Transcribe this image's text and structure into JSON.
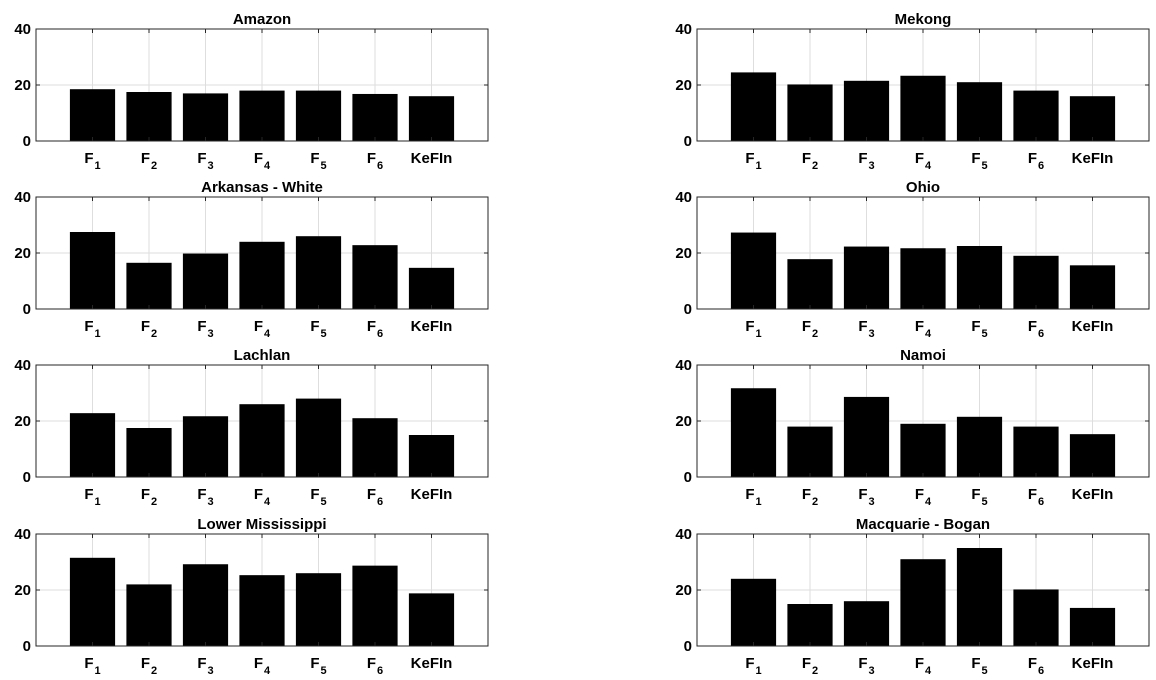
{
  "chart_data": [
    {
      "type": "bar",
      "title": "Amazon",
      "categories": [
        {
          "base": "F",
          "sub": "1"
        },
        {
          "base": "F",
          "sub": "2"
        },
        {
          "base": "F",
          "sub": "3"
        },
        {
          "base": "F",
          "sub": "4"
        },
        {
          "base": "F",
          "sub": "5"
        },
        {
          "base": "F",
          "sub": "6"
        },
        {
          "base": "KeFIn",
          "sub": ""
        }
      ],
      "values": [
        18.5,
        17.5,
        17,
        18,
        18,
        16.8,
        16
      ],
      "ylim": [
        0,
        40
      ],
      "yticks": [
        "0",
        "20",
        "40"
      ],
      "grid": true,
      "bar_color": "#000000"
    },
    {
      "type": "bar",
      "title": "Mekong",
      "categories": [
        {
          "base": "F",
          "sub": "1"
        },
        {
          "base": "F",
          "sub": "2"
        },
        {
          "base": "F",
          "sub": "3"
        },
        {
          "base": "F",
          "sub": "4"
        },
        {
          "base": "F",
          "sub": "5"
        },
        {
          "base": "F",
          "sub": "6"
        },
        {
          "base": "KeFIn",
          "sub": ""
        }
      ],
      "values": [
        24.5,
        20.2,
        21.5,
        23.3,
        21,
        18,
        16
      ],
      "ylim": [
        0,
        40
      ],
      "yticks": [
        "0",
        "20",
        "40"
      ],
      "grid": true,
      "bar_color": "#000000"
    },
    {
      "type": "bar",
      "title": "Arkansas - White",
      "categories": [
        {
          "base": "F",
          "sub": "1"
        },
        {
          "base": "F",
          "sub": "2"
        },
        {
          "base": "F",
          "sub": "3"
        },
        {
          "base": "F",
          "sub": "4"
        },
        {
          "base": "F",
          "sub": "5"
        },
        {
          "base": "F",
          "sub": "6"
        },
        {
          "base": "KeFIn",
          "sub": ""
        }
      ],
      "values": [
        27.5,
        16.5,
        19.8,
        24,
        26,
        22.8,
        14.7
      ],
      "ylim": [
        0,
        40
      ],
      "yticks": [
        "0",
        "20",
        "40"
      ],
      "grid": true,
      "bar_color": "#000000"
    },
    {
      "type": "bar",
      "title": "Ohio",
      "categories": [
        {
          "base": "F",
          "sub": "1"
        },
        {
          "base": "F",
          "sub": "2"
        },
        {
          "base": "F",
          "sub": "3"
        },
        {
          "base": "F",
          "sub": "4"
        },
        {
          "base": "F",
          "sub": "5"
        },
        {
          "base": "F",
          "sub": "6"
        },
        {
          "base": "KeFIn",
          "sub": ""
        }
      ],
      "values": [
        27.3,
        17.8,
        22.3,
        21.7,
        22.5,
        19,
        15.6
      ],
      "ylim": [
        0,
        40
      ],
      "yticks": [
        "0",
        "20",
        "40"
      ],
      "grid": true,
      "bar_color": "#000000"
    },
    {
      "type": "bar",
      "title": "Lachlan",
      "categories": [
        {
          "base": "F",
          "sub": "1"
        },
        {
          "base": "F",
          "sub": "2"
        },
        {
          "base": "F",
          "sub": "3"
        },
        {
          "base": "F",
          "sub": "4"
        },
        {
          "base": "F",
          "sub": "5"
        },
        {
          "base": "F",
          "sub": "6"
        },
        {
          "base": "KeFIn",
          "sub": ""
        }
      ],
      "values": [
        22.8,
        17.5,
        21.7,
        26,
        28,
        21,
        15
      ],
      "ylim": [
        0,
        40
      ],
      "yticks": [
        "0",
        "20",
        "40"
      ],
      "grid": true,
      "bar_color": "#000000"
    },
    {
      "type": "bar",
      "title": "Namoi",
      "categories": [
        {
          "base": "F",
          "sub": "1"
        },
        {
          "base": "F",
          "sub": "2"
        },
        {
          "base": "F",
          "sub": "3"
        },
        {
          "base": "F",
          "sub": "4"
        },
        {
          "base": "F",
          "sub": "5"
        },
        {
          "base": "F",
          "sub": "6"
        },
        {
          "base": "KeFIn",
          "sub": ""
        }
      ],
      "values": [
        31.7,
        18,
        28.6,
        19,
        21.5,
        18,
        15.3
      ],
      "ylim": [
        0,
        40
      ],
      "yticks": [
        "0",
        "20",
        "40"
      ],
      "grid": true,
      "bar_color": "#000000"
    },
    {
      "type": "bar",
      "title": "Lower Mississippi",
      "categories": [
        {
          "base": "F",
          "sub": "1"
        },
        {
          "base": "F",
          "sub": "2"
        },
        {
          "base": "F",
          "sub": "3"
        },
        {
          "base": "F",
          "sub": "4"
        },
        {
          "base": "F",
          "sub": "5"
        },
        {
          "base": "F",
          "sub": "6"
        },
        {
          "base": "KeFIn",
          "sub": ""
        }
      ],
      "values": [
        31.5,
        22,
        29.2,
        25.3,
        26,
        28.7,
        18.8
      ],
      "ylim": [
        0,
        40
      ],
      "yticks": [
        "0",
        "20",
        "40"
      ],
      "grid": true,
      "bar_color": "#000000"
    },
    {
      "type": "bar",
      "title": "Macquarie - Bogan",
      "categories": [
        {
          "base": "F",
          "sub": "1"
        },
        {
          "base": "F",
          "sub": "2"
        },
        {
          "base": "F",
          "sub": "3"
        },
        {
          "base": "F",
          "sub": "4"
        },
        {
          "base": "F",
          "sub": "5"
        },
        {
          "base": "F",
          "sub": "6"
        },
        {
          "base": "KeFIn",
          "sub": ""
        }
      ],
      "values": [
        24,
        15,
        16,
        31,
        35,
        20.2,
        13.6
      ],
      "ylim": [
        0,
        40
      ],
      "yticks": [
        "0",
        "20",
        "40"
      ],
      "grid": true,
      "bar_color": "#000000"
    }
  ]
}
